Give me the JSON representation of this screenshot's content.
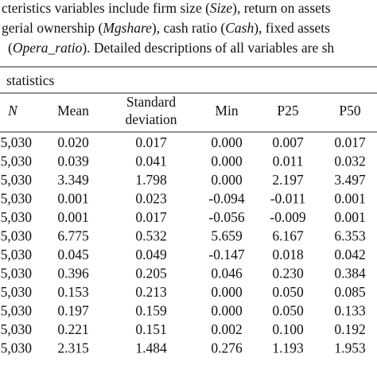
{
  "intro": {
    "lines": [
      [
        {
          "text": "cteristics variables include firm size ("
        },
        {
          "text": "Size",
          "italic": true
        },
        {
          "text": "), return on assets"
        }
      ],
      [
        {
          "text": "gerial ownership ("
        },
        {
          "text": "Mgshare",
          "italic": true
        },
        {
          "text": "), cash ratio ("
        },
        {
          "text": "Cash",
          "italic": true
        },
        {
          "text": "), fixed assets"
        }
      ],
      [
        {
          "text": "("
        },
        {
          "text": "Opera_ratio",
          "italic": true
        },
        {
          "text": "). Detailed descriptions of all variables are sh"
        }
      ]
    ]
  },
  "table": {
    "caption": "statistics",
    "header": [
      {
        "lines": [
          "N"
        ],
        "italic": true
      },
      {
        "lines": [
          "Mean"
        ]
      },
      {
        "lines": [
          "Standard",
          "deviation"
        ]
      },
      {
        "lines": [
          "Min"
        ]
      },
      {
        "lines": [
          "P25"
        ]
      },
      {
        "lines": [
          "P50"
        ]
      }
    ],
    "rows": [
      [
        "5,030",
        "0.020",
        "0.017",
        "0.000",
        "0.007",
        "0.017"
      ],
      [
        "5,030",
        "0.039",
        "0.041",
        "0.000",
        "0.011",
        "0.032"
      ],
      [
        "5,030",
        "3.349",
        "1.798",
        "0.000",
        "2.197",
        "3.497"
      ],
      [
        "5,030",
        "0.001",
        "0.023",
        "-0.094",
        "-0.011",
        "0.001"
      ],
      [
        "5,030",
        "0.001",
        "0.017",
        "-0.056",
        "-0.009",
        "0.001"
      ],
      [
        "5,030",
        "6.775",
        "0.532",
        "5.659",
        "6.167",
        "6.353"
      ],
      [
        "5,030",
        "0.045",
        "0.049",
        "-0.147",
        "0.018",
        "0.042"
      ],
      [
        "5,030",
        "0.396",
        "0.205",
        "0.046",
        "0.230",
        "0.384"
      ],
      [
        "5,030",
        "0.153",
        "0.213",
        "0.000",
        "0.050",
        "0.085"
      ],
      [
        "5,030",
        "0.197",
        "0.159",
        "0.000",
        "0.050",
        "0.133"
      ],
      [
        "5,030",
        "0.221",
        "0.151",
        "0.002",
        "0.100",
        "0.192"
      ],
      [
        "5,030",
        "2.315",
        "1.484",
        "0.276",
        "1.193",
        "1.953"
      ]
    ]
  }
}
